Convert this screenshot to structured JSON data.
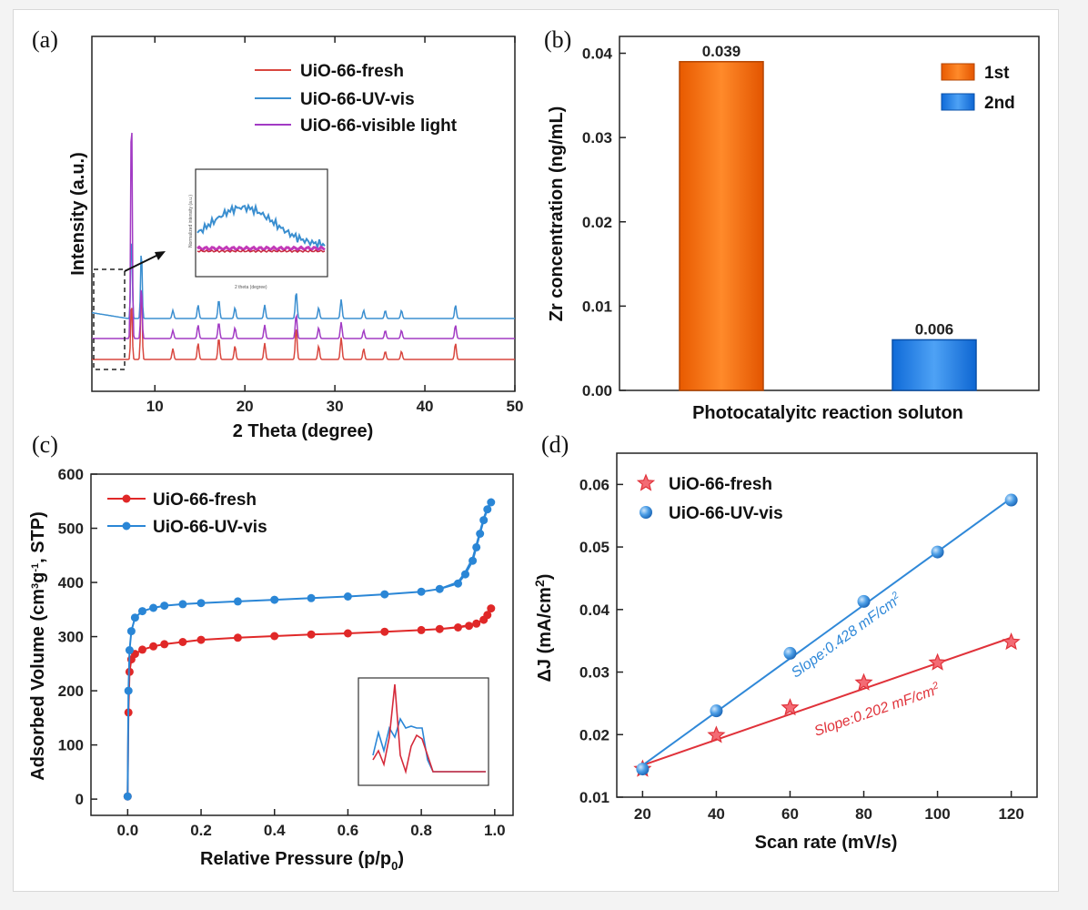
{
  "chart_data": [
    {
      "panel": "(a)",
      "type": "line",
      "xlabel": "2 Theta (degree)",
      "ylabel": "Intensity (a.u.)",
      "xlim": [
        3,
        50
      ],
      "xticks": [
        10,
        20,
        30,
        40,
        50
      ],
      "peaks_deg": [
        7.4,
        8.5,
        12.0,
        14.8,
        17.1,
        18.9,
        22.2,
        25.7,
        28.2,
        30.7,
        33.2,
        35.6,
        37.4,
        43.4
      ],
      "series": [
        {
          "name": "UiO-66-fresh",
          "color": "#d9473f",
          "offset": 0,
          "peak_heights": [
            22,
            28,
            4,
            6,
            8,
            5,
            6,
            12,
            5,
            8,
            4,
            3,
            3,
            6
          ]
        },
        {
          "name": "UiO-66-UV-vis",
          "color": "#3b8fd0",
          "offset": 2,
          "peak_heights": [
            32,
            26,
            3,
            5,
            7,
            4,
            5,
            10,
            4,
            7,
            3,
            3,
            3,
            5
          ]
        },
        {
          "name": "UiO-66-visible light",
          "color": "#a23bc4",
          "offset": 1,
          "peak_heights": [
            88,
            20,
            3,
            5,
            6,
            4,
            5,
            9,
            4,
            6,
            3,
            3,
            3,
            5
          ]
        }
      ],
      "legend": "top-right",
      "inset": {
        "xlabel": "2 theta (degree)",
        "ylabel": "Normalized intensity (a.u.)"
      }
    },
    {
      "panel": "(b)",
      "type": "bar",
      "xlabel": "Photocatalyitc reaction soluton",
      "ylabel": "Zr concentration (ng/mL)",
      "ylim": [
        0,
        0.042
      ],
      "yticks": [
        "0.00",
        "0.01",
        "0.02",
        "0.03",
        "0.04"
      ],
      "categories": [
        "1st",
        "2nd"
      ],
      "values": [
        0.039,
        0.006
      ],
      "value_labels": [
        "0.039",
        "0.006"
      ],
      "colors": [
        "#f26d10",
        "#1f7fe6"
      ],
      "legend": "top-right"
    },
    {
      "panel": "(c)",
      "type": "line",
      "xlabel": "Relative Pressure (p/p",
      "xlabel_sub": "0",
      "ylabel_parts": [
        "Adsorbed Volume (cm",
        "3",
        "g",
        "-1",
        ", STP)"
      ],
      "xlim": [
        -0.1,
        1.05
      ],
      "ylim": [
        -30,
        600
      ],
      "xticks": [
        "0.0",
        "0.2",
        "0.4",
        "0.6",
        "0.8",
        "1.0"
      ],
      "yticks": [
        "0",
        "100",
        "200",
        "300",
        "400",
        "500",
        "600"
      ],
      "series": [
        {
          "name": "UiO-66-fresh",
          "color": "#e02828",
          "x": [
            0.0,
            0.002,
            0.005,
            0.01,
            0.02,
            0.04,
            0.07,
            0.1,
            0.15,
            0.2,
            0.3,
            0.4,
            0.5,
            0.6,
            0.7,
            0.8,
            0.85,
            0.9,
            0.93,
            0.95,
            0.97,
            0.98,
            0.99
          ],
          "y": [
            5,
            160,
            235,
            258,
            268,
            276,
            282,
            286,
            290,
            294,
            298,
            301,
            304,
            306,
            309,
            312,
            314,
            317,
            320,
            324,
            331,
            340,
            352
          ]
        },
        {
          "name": "UiO-66-UV-vis",
          "color": "#2a86d6",
          "x": [
            0.0,
            0.002,
            0.005,
            0.01,
            0.02,
            0.04,
            0.07,
            0.1,
            0.15,
            0.2,
            0.3,
            0.4,
            0.5,
            0.6,
            0.7,
            0.8,
            0.85,
            0.9,
            0.92,
            0.94,
            0.95,
            0.96,
            0.97,
            0.98,
            0.99
          ],
          "y": [
            5,
            200,
            275,
            310,
            335,
            347,
            353,
            357,
            360,
            362,
            365,
            368,
            371,
            374,
            378,
            383,
            388,
            398,
            415,
            440,
            465,
            490,
            515,
            535,
            548
          ]
        }
      ],
      "legend": "top-left"
    },
    {
      "panel": "(d)",
      "type": "scatter",
      "xlabel": "Scan rate (mV/s)",
      "ylabel": "ΔJ (mA/cm",
      "ylabel_sup": "2",
      "ylabel_end": ")",
      "xlim": [
        13,
        127
      ],
      "ylim": [
        0.01,
        0.065
      ],
      "xticks": [
        "20",
        "40",
        "60",
        "80",
        "100",
        "120"
      ],
      "yticks": [
        "0.01",
        "0.02",
        "0.03",
        "0.04",
        "0.05",
        "0.06"
      ],
      "series": [
        {
          "name": "UiO-66-fresh",
          "color": "#e0323a",
          "marker": "star",
          "x": [
            20,
            40,
            60,
            80,
            100,
            120
          ],
          "y": [
            0.0145,
            0.0199,
            0.0243,
            0.0283,
            0.0315,
            0.0348
          ],
          "fit": [
            [
              20,
              0.0151
            ],
            [
              120,
              0.0355
            ]
          ],
          "annotation": "Slope:0.202 mF/cm"
        },
        {
          "name": "UiO-66-UV-vis",
          "color": "#2f88d8",
          "marker": "circle",
          "x": [
            20,
            40,
            60,
            80,
            100,
            120
          ],
          "y": [
            0.0145,
            0.0238,
            0.033,
            0.0413,
            0.0492,
            0.0575
          ],
          "fit": [
            [
              20,
              0.0151
            ],
            [
              120,
              0.0578
            ]
          ],
          "annotation": "Slope:0.428 mF/cm"
        }
      ],
      "legend": "top-left"
    }
  ]
}
